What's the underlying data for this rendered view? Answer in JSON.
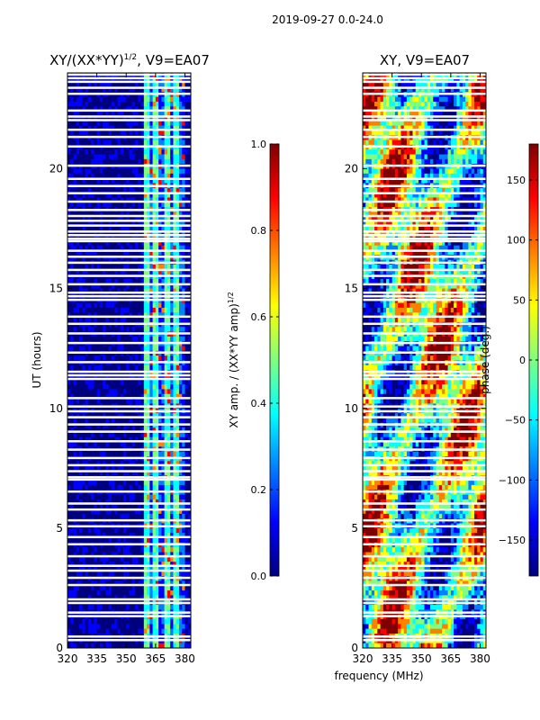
{
  "suptitle": "2019-09-27 0.0-24.0",
  "colors": {
    "jet": [
      "#00007f",
      "#0000ff",
      "#007fff",
      "#00ffff",
      "#7fff7f",
      "#ffff00",
      "#ff7f00",
      "#ff0000",
      "#7f0000"
    ],
    "white": "#ffffff"
  },
  "chart_data": [
    {
      "type": "heatmap",
      "title_base": "XY/(XX*YY)",
      "title_exp": "1/2",
      "title_suffix": ", V9=EA07",
      "xlabel": "",
      "ylabel": "UT (hours)",
      "xlim": [
        320,
        383
      ],
      "ylim": [
        0,
        24
      ],
      "xticks": [
        320,
        335,
        350,
        365,
        380
      ],
      "yticks": [
        0,
        5,
        10,
        15,
        20
      ],
      "colorbar": {
        "label_base": "XY amp. / (XX*YY amp)",
        "label_exp": "1/2",
        "range": [
          0.0,
          1.0
        ],
        "ticks": [
          "0.0",
          "0.2",
          "0.4",
          "0.6",
          "0.8",
          "1.0"
        ]
      },
      "description_values": "low amplitude (~0.0-0.1) below 360 MHz, bright striped channels 360-380 MHz (~0.3-0.8)"
    },
    {
      "type": "heatmap",
      "title": "XY, V9=EA07",
      "xlabel": "frequency (MHz)",
      "ylabel": "",
      "xlim": [
        320,
        383
      ],
      "ylim": [
        0,
        24
      ],
      "xticks": [
        320,
        335,
        350,
        365,
        380
      ],
      "yticks": [
        0,
        5,
        10,
        15,
        20
      ],
      "colorbar": {
        "label": "phase (deg.)",
        "range": [
          -180,
          180
        ],
        "ticks": [
          "150",
          "100",
          "50",
          "0",
          "−50",
          "−100",
          "−150"
        ]
      },
      "description_values": "phase varies across full range -180 to 180 deg"
    }
  ],
  "flagged_hours": [
    0.3,
    0.45,
    1.3,
    1.45,
    1.85,
    2.0,
    2.6,
    2.9,
    3.2,
    3.4,
    3.8,
    4.3,
    4.6,
    5.05,
    5.3,
    5.75,
    6.0,
    6.5,
    7.0,
    7.1,
    7.35,
    7.6,
    7.9,
    8.25,
    8.6,
    9.0,
    9.3,
    9.6,
    9.85,
    10.05,
    10.4,
    11.2,
    11.35,
    11.5,
    11.9,
    12.3,
    12.7,
    13.1,
    13.5,
    13.8,
    14.5,
    14.65,
    14.8,
    15.15,
    15.5,
    15.75,
    16.05,
    16.3,
    16.55,
    16.95,
    17.05,
    17.2,
    17.35,
    17.6,
    17.8,
    18.0,
    18.25,
    18.6,
    18.95,
    19.25,
    19.55,
    20.1,
    20.9,
    21.3,
    21.6,
    22.0,
    22.15,
    22.4,
    23.1,
    23.35,
    23.6,
    23.75,
    23.9
  ]
}
